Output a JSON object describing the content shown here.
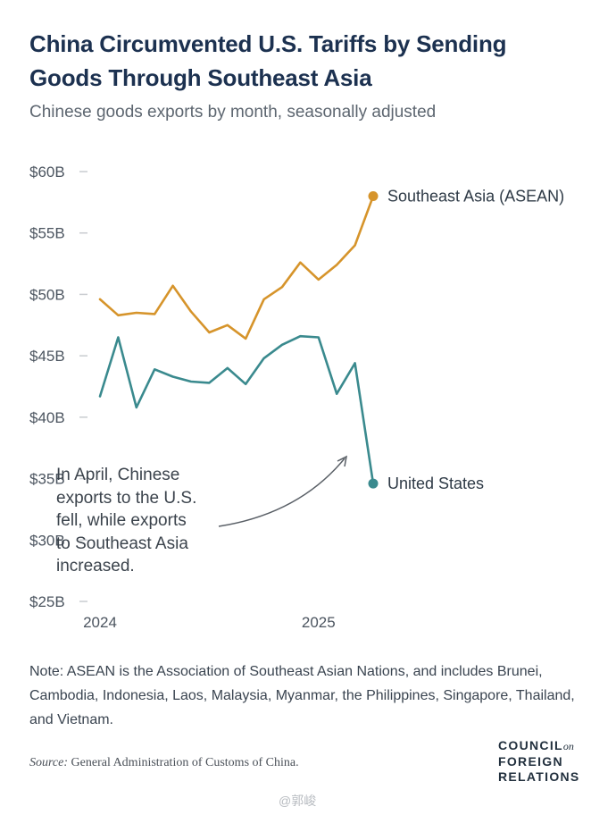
{
  "header": {
    "title": "China Circumvented U.S. Tariffs by Sending Goods Through Southeast Asia",
    "subtitle": "Chinese goods exports by month, seasonally adjusted"
  },
  "annotation": {
    "lines": [
      "In April, Chinese",
      "exports to the U.S.",
      "fell, while exports",
      "to Southeast Asia",
      "increased."
    ]
  },
  "footer": {
    "note": "Note: ASEAN is the Association of Southeast Asian Nations, and includes Brunei, Cambodia, Indonesia, Laos, Malaysia, Myanmar, the Philippines, Singapore, Thailand, and Vietnam.",
    "source_label": "Source:",
    "source_text": "General Administration of Customs of China.",
    "logo": [
      "COUNCIL",
      "on",
      "FOREIGN",
      "RELATIONS"
    ],
    "watermark": "@郭峻"
  },
  "colors": {
    "asean": "#d6942b",
    "us": "#3a8a8e",
    "grid": "#c9ccd0"
  },
  "chart_data": {
    "type": "line",
    "title": "China Circumvented U.S. Tariffs by Sending Goods Through Southeast Asia",
    "subtitle": "Chinese goods exports by month, seasonally adjusted",
    "xlabel": "",
    "ylabel": "",
    "ylim": [
      25,
      60
    ],
    "yticks": [
      60,
      55,
      50,
      45,
      40,
      35,
      30,
      25
    ],
    "ytick_labels": [
      "$60B",
      "$55B",
      "$50B",
      "$45B",
      "$40B",
      "$35B",
      "$30B",
      "$25B"
    ],
    "x": [
      "2024-01",
      "2024-02",
      "2024-03",
      "2024-04",
      "2024-05",
      "2024-06",
      "2024-07",
      "2024-08",
      "2024-09",
      "2024-10",
      "2024-11",
      "2024-12",
      "2025-01",
      "2025-02",
      "2025-03",
      "2025-04"
    ],
    "xtick_labels": [
      "2024",
      "2025"
    ],
    "xtick_positions": [
      0,
      12
    ],
    "series": [
      {
        "name": "Southeast Asia (ASEAN)",
        "values": [
          49.6,
          48.3,
          48.5,
          48.4,
          50.7,
          48.6,
          46.9,
          47.5,
          46.4,
          49.6,
          50.6,
          52.6,
          51.2,
          52.4,
          54.0,
          58.0
        ]
      },
      {
        "name": "United States",
        "values": [
          41.7,
          46.5,
          40.8,
          43.9,
          43.3,
          42.9,
          42.8,
          44.0,
          42.7,
          44.8,
          45.9,
          46.6,
          46.5,
          41.9,
          44.4,
          34.6
        ]
      }
    ]
  }
}
